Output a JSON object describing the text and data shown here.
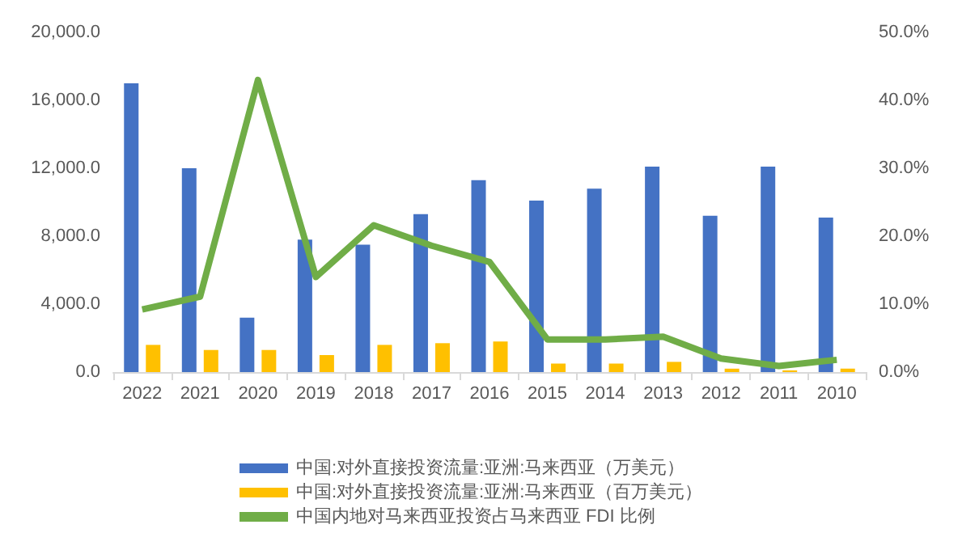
{
  "chart_data": {
    "type": "bar",
    "categories": [
      "2022",
      "2021",
      "2020",
      "2019",
      "2018",
      "2017",
      "2016",
      "2015",
      "2014",
      "2013",
      "2012",
      "2011",
      "2010"
    ],
    "series": [
      {
        "name": "中国:对外直接投资流量:亚洲:马来西亚（万美元）",
        "color": "#4472c4",
        "values": [
          17000,
          12000,
          3200,
          7800,
          7500,
          9300,
          11300,
          10100,
          10800,
          12100,
          9200,
          12100,
          9100
        ]
      },
      {
        "name": "中国:对外直接投资流量:亚洲:马来西亚（百万美元）",
        "color": "#ffc000",
        "values": [
          1600,
          1300,
          1300,
          1000,
          1600,
          1700,
          1800,
          500,
          500,
          600,
          200,
          100,
          200
        ]
      },
      {
        "name": "中国内地对马来西亚投资占马来西亚 FDI 比例",
        "color": "#70ad47",
        "type": "line",
        "axis": "y2",
        "values": [
          9.2,
          11.1,
          43,
          14,
          21.6,
          18.6,
          16.2,
          4.8,
          4.8,
          5.2,
          2.0,
          0.9,
          1.8
        ]
      }
    ],
    "ylim": [
      0,
      20000
    ],
    "yticks": [
      {
        "value": 0,
        "label": "0.0"
      },
      {
        "value": 4000,
        "label": "4,000.0"
      },
      {
        "value": 8000,
        "label": "8,000.0"
      },
      {
        "value": 12000,
        "label": "12,000.0"
      },
      {
        "value": 16000,
        "label": "16,000.0"
      },
      {
        "value": 20000,
        "label": "20,000.0"
      }
    ],
    "y2lim": [
      0,
      50
    ],
    "y2ticks": [
      {
        "value": 0,
        "label": "0.0%"
      },
      {
        "value": 10,
        "label": "10.0%"
      },
      {
        "value": 20,
        "label": "20.0%"
      },
      {
        "value": 30,
        "label": "30.0%"
      },
      {
        "value": 40,
        "label": "40.0%"
      },
      {
        "value": 50,
        "label": "50.0%"
      }
    ],
    "grid": false,
    "legend": "bottom",
    "marker": "none"
  }
}
